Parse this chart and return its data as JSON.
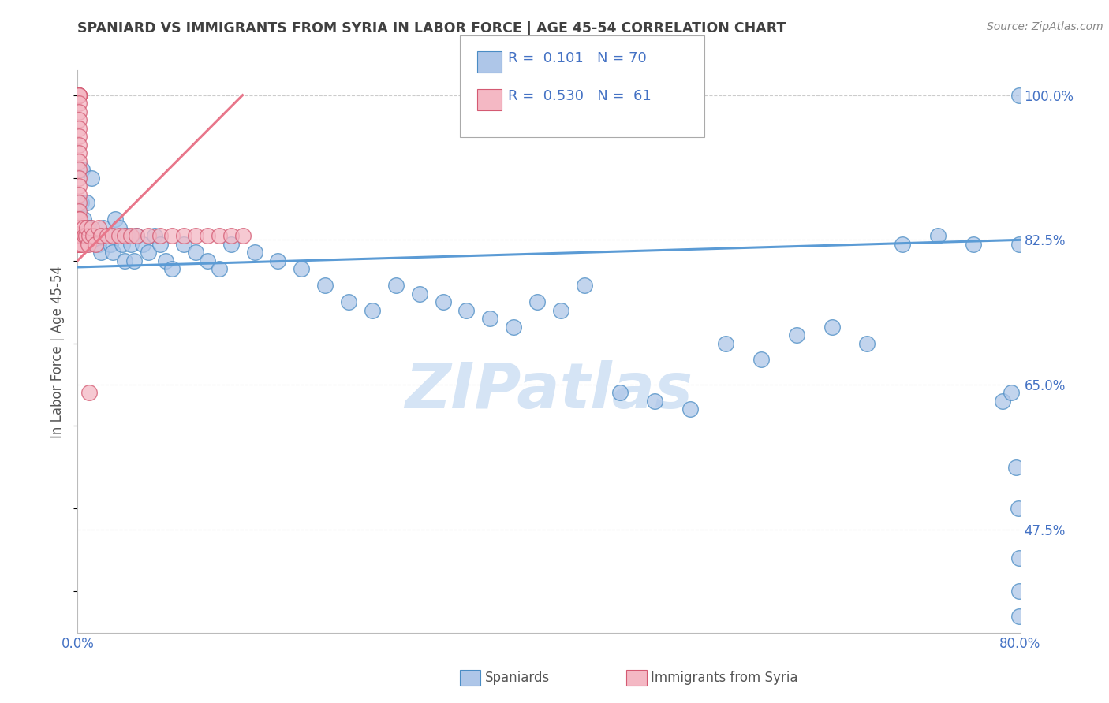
{
  "title": "SPANIARD VS IMMIGRANTS FROM SYRIA IN LABOR FORCE | AGE 45-54 CORRELATION CHART",
  "source": "Source: ZipAtlas.com",
  "ylabel": "In Labor Force | Age 45-54",
  "watermark": "ZIPatlas",
  "xlim": [
    0.0,
    0.8
  ],
  "ylim": [
    0.35,
    1.03
  ],
  "xticks": [
    0.0,
    0.1,
    0.2,
    0.3,
    0.4,
    0.5,
    0.6,
    0.7,
    0.8
  ],
  "xticklabels": [
    "0.0%",
    "",
    "",
    "",
    "",
    "",
    "",
    "",
    "80.0%"
  ],
  "yticks_right": [
    1.0,
    0.825,
    0.65,
    0.475
  ],
  "yticklabels_right": [
    "100.0%",
    "82.5%",
    "65.0%",
    "47.5%"
  ],
  "legend_entries": [
    {
      "label": "Spaniards",
      "R": "0.101",
      "N": "70"
    },
    {
      "label": "Immigrants from Syria",
      "R": "0.530",
      "N": "61"
    }
  ],
  "blue_scatter_x": [
    0.002,
    0.003,
    0.004,
    0.005,
    0.006,
    0.007,
    0.008,
    0.01,
    0.012,
    0.015,
    0.018,
    0.02,
    0.022,
    0.025,
    0.028,
    0.03,
    0.032,
    0.035,
    0.038,
    0.04,
    0.042,
    0.045,
    0.048,
    0.05,
    0.055,
    0.06,
    0.065,
    0.07,
    0.075,
    0.08,
    0.09,
    0.1,
    0.11,
    0.12,
    0.13,
    0.15,
    0.17,
    0.19,
    0.21,
    0.23,
    0.25,
    0.27,
    0.29,
    0.31,
    0.33,
    0.35,
    0.37,
    0.39,
    0.41,
    0.43,
    0.46,
    0.49,
    0.52,
    0.55,
    0.58,
    0.61,
    0.64,
    0.67,
    0.7,
    0.73,
    0.76,
    0.785,
    0.792,
    0.796,
    0.798,
    0.799,
    0.799,
    0.799,
    0.799,
    0.799
  ],
  "blue_scatter_y": [
    0.84,
    0.87,
    0.91,
    0.85,
    0.83,
    0.82,
    0.87,
    0.84,
    0.9,
    0.83,
    0.82,
    0.81,
    0.84,
    0.83,
    0.82,
    0.81,
    0.85,
    0.84,
    0.82,
    0.8,
    0.83,
    0.82,
    0.8,
    0.83,
    0.82,
    0.81,
    0.83,
    0.82,
    0.8,
    0.79,
    0.82,
    0.81,
    0.8,
    0.79,
    0.82,
    0.81,
    0.8,
    0.79,
    0.77,
    0.75,
    0.74,
    0.77,
    0.76,
    0.75,
    0.74,
    0.73,
    0.72,
    0.75,
    0.74,
    0.77,
    0.64,
    0.63,
    0.62,
    0.7,
    0.68,
    0.71,
    0.72,
    0.7,
    0.82,
    0.83,
    0.82,
    0.63,
    0.64,
    0.55,
    0.5,
    0.44,
    0.4,
    0.37,
    0.82,
    1.0
  ],
  "pink_scatter_x": [
    0.001,
    0.001,
    0.001,
    0.001,
    0.001,
    0.001,
    0.001,
    0.001,
    0.001,
    0.001,
    0.001,
    0.001,
    0.001,
    0.001,
    0.001,
    0.001,
    0.001,
    0.001,
    0.001,
    0.001,
    0.001,
    0.001,
    0.001,
    0.001,
    0.001,
    0.001,
    0.001,
    0.001,
    0.002,
    0.002,
    0.002,
    0.002,
    0.003,
    0.004,
    0.005,
    0.006,
    0.007,
    0.008,
    0.009,
    0.01,
    0.012,
    0.013,
    0.015,
    0.018,
    0.02,
    0.025,
    0.03,
    0.035,
    0.04,
    0.045,
    0.05,
    0.06,
    0.07,
    0.08,
    0.09,
    0.1,
    0.11,
    0.12,
    0.13,
    0.14,
    0.01
  ],
  "pink_scatter_y": [
    1.0,
    1.0,
    1.0,
    1.0,
    0.99,
    0.98,
    0.97,
    0.96,
    0.95,
    0.94,
    0.93,
    0.92,
    0.91,
    0.9,
    0.89,
    0.88,
    0.87,
    0.86,
    0.85,
    0.84,
    0.83,
    0.82,
    0.82,
    0.82,
    0.82,
    0.82,
    0.82,
    0.82,
    0.82,
    0.83,
    0.84,
    0.85,
    0.83,
    0.82,
    0.84,
    0.83,
    0.83,
    0.84,
    0.82,
    0.83,
    0.84,
    0.83,
    0.82,
    0.84,
    0.83,
    0.83,
    0.83,
    0.83,
    0.83,
    0.83,
    0.83,
    0.83,
    0.83,
    0.83,
    0.83,
    0.83,
    0.83,
    0.83,
    0.83,
    0.83,
    0.64
  ],
  "blue_line_x": [
    0.0,
    0.8
  ],
  "blue_line_y": [
    0.792,
    0.825
  ],
  "pink_line_x": [
    0.0,
    0.14
  ],
  "pink_line_y": [
    0.8,
    1.0
  ],
  "blue_color": "#5b9bd5",
  "blue_edge": "#4a8cc4",
  "pink_color": "#e8768a",
  "pink_edge": "#d45a72",
  "blue_fill": "#aec6e8",
  "pink_fill": "#f4b8c4",
  "grid_color": "#cccccc",
  "title_color": "#404040",
  "axis_label_color": "#555555",
  "tick_color": "#4472c4",
  "watermark_color": "#d5e4f5"
}
